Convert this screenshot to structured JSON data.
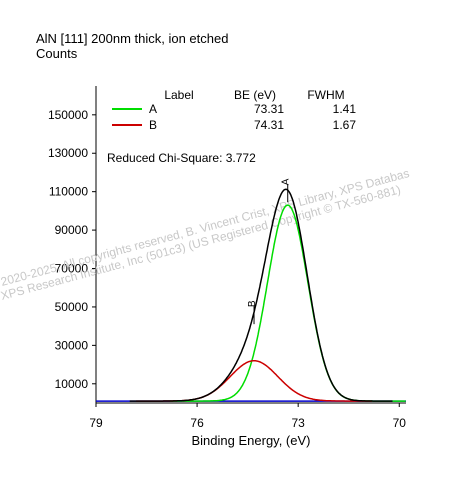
{
  "chart_data": {
    "type": "line",
    "title": "AlN [111] 200nm thick, ion etched",
    "ylabel": "Counts",
    "xlabel": "Binding Energy, (eV)",
    "x_reversed": true,
    "xlim": [
      69.8,
      79.0
    ],
    "ylim": [
      0,
      165000
    ],
    "x_ticks": [
      79,
      76,
      73,
      70
    ],
    "y_ticks": [
      10000,
      30000,
      50000,
      70000,
      90000,
      110000,
      130000,
      150000
    ],
    "legend": {
      "headers": [
        "Label",
        "BE (eV)",
        "FWHM"
      ],
      "rows": [
        {
          "label": "A",
          "be": "73.31",
          "fwhm": "1.41",
          "color": "#00dd00"
        },
        {
          "label": "B",
          "be": "74.31",
          "fwhm": "1.67",
          "color": "#cc0000"
        }
      ]
    },
    "annotation": "Reduced Chi-Square: 3.772",
    "watermark": [
      "2020-2025, All copyrights reserved,   B. Vincent Crist,   XPS Library, XPS Databas",
      "XPS Research Institute, Inc (501c3)   (US Registered Copyright © TX-560-881)"
    ],
    "peak_labels": [
      "A",
      "B"
    ],
    "background": {
      "x": [
        79.0,
        69.8
      ],
      "y": [
        1000,
        1000
      ],
      "color": "#0000cc"
    },
    "peaks": [
      {
        "name": "A",
        "center": 73.31,
        "fwhm": 1.41,
        "height": 102000,
        "color": "#00dd00"
      },
      {
        "name": "B",
        "center": 74.31,
        "fwhm": 1.67,
        "height": 21000,
        "color": "#cc0000"
      }
    ],
    "envelope": {
      "x_range": [
        78.0,
        70.2
      ],
      "color": "#000000"
    }
  }
}
